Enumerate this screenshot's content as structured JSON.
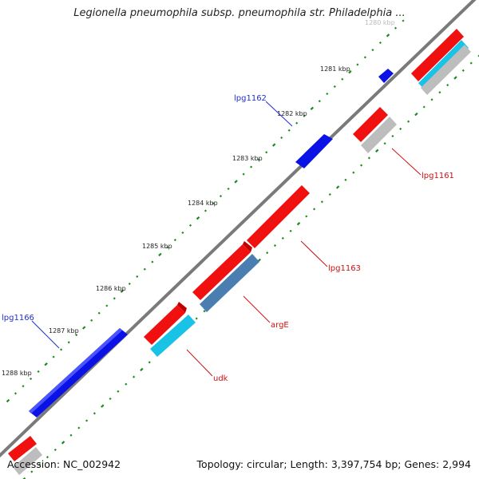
{
  "title": "Legionella pneumophila subsp. pneumophila str. Philadelphia ...",
  "ruler": {
    "unit": "kbp",
    "ticks": [
      {
        "value": 1280,
        "label": "1280 kbp",
        "faded": true
      },
      {
        "value": 1281,
        "label": "1281 kbp"
      },
      {
        "value": 1282,
        "label": "1282 kbp"
      },
      {
        "value": 1283,
        "label": "1283 kbp"
      },
      {
        "value": 1284,
        "label": "1284 kbp"
      },
      {
        "value": 1285,
        "label": "1285 kbp"
      },
      {
        "value": 1286,
        "label": "1286 kbp"
      },
      {
        "value": 1287,
        "label": "1287 kbp"
      },
      {
        "value": 1288,
        "label": "1288 kbp"
      }
    ]
  },
  "gene_labels": [
    {
      "name": "lpg1162",
      "color": "#1f2fd0"
    },
    {
      "name": "lpg1161",
      "color": "#cc1111"
    },
    {
      "name": "lpg1163",
      "color": "#cc1111"
    },
    {
      "name": "argE",
      "color": "#cc1111"
    },
    {
      "name": "lpg1166",
      "color": "#1f2fd0"
    },
    {
      "name": "udk",
      "color": "#cc1111"
    }
  ],
  "colors": {
    "forward_gene": "#0a12e6",
    "reverse_gene": "#f01010",
    "cyan_gene": "#19c3e6",
    "steel_gene": "#4a7db0",
    "grey_gene": "#bdbdbd",
    "backbone": "#888888",
    "tick": "#1a8a1a"
  },
  "footer": {
    "accession_label": "Accession:",
    "accession": "NC_002942",
    "topology_label": "Topology:",
    "topology": "circular",
    "length_label": "Length:",
    "length": "3,397,754 bp",
    "genes_label": "Genes:",
    "genes": "2,994"
  }
}
